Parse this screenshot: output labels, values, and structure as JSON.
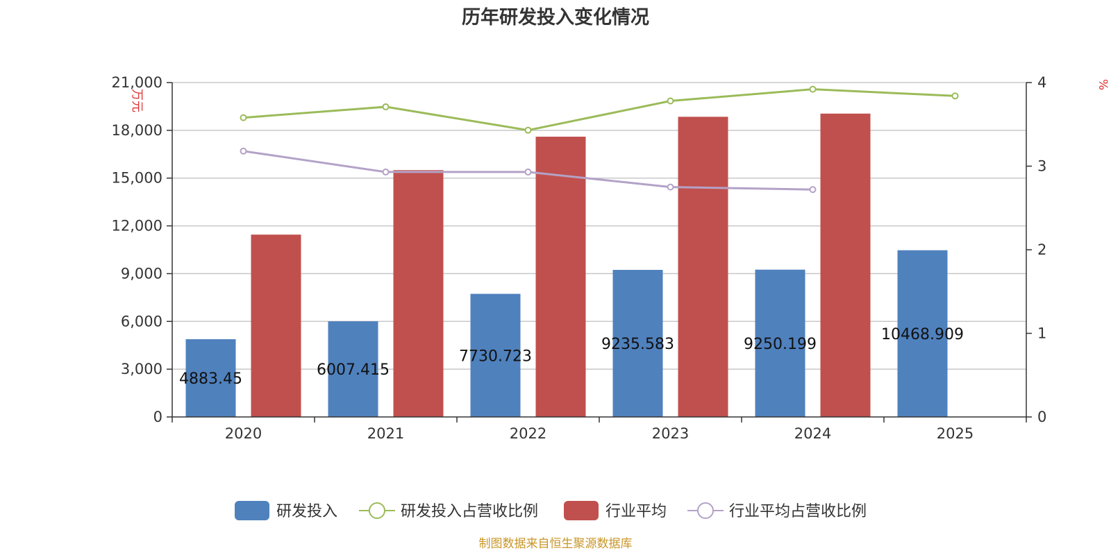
{
  "colors": {
    "rd_bar": "#4f81bd",
    "industry_bar": "#c0504d",
    "rd_ratio_line": "#9bbb59",
    "industry_ratio_line": "#b3a2c7",
    "grid": "#c8c8c8",
    "axis": "#333333",
    "title": "#333333",
    "unit_label": "#e03030",
    "source_text": "#c89628"
  },
  "source": "制图数据来自恒生聚源数据库",
  "chart_data": {
    "type": "bar",
    "title": "历年研发投入变化情况",
    "categories": [
      "2020",
      "2021",
      "2022",
      "2023",
      "2024",
      "2025"
    ],
    "y_left": {
      "label": "万元",
      "lim": [
        0,
        21000
      ],
      "ticks": [
        0,
        3000,
        6000,
        9000,
        12000,
        15000,
        18000,
        21000
      ],
      "tick_labels": [
        "0",
        "3,000",
        "6,000",
        "9,000",
        "12,000",
        "15,000",
        "18,000",
        "21,000"
      ]
    },
    "y_right": {
      "label": "%",
      "lim": [
        0,
        4
      ],
      "ticks": [
        0,
        1,
        2,
        3,
        4
      ],
      "tick_labels": [
        "0",
        "1",
        "2",
        "3",
        "4"
      ]
    },
    "grid": true,
    "legend_position": "bottom",
    "series": [
      {
        "name": "研发投入",
        "kind": "bar",
        "axis": "left",
        "color": "#4f81bd",
        "values": [
          4883.45,
          6007.415,
          7730.723,
          9235.583,
          9250.199,
          10468.909
        ],
        "labels": [
          "4883.45",
          "6007.415",
          "7730.723",
          "9235.583",
          "9250.199",
          "10468.909"
        ]
      },
      {
        "name": "研发投入占营收比例",
        "kind": "line",
        "axis": "right",
        "color": "#9bbb59",
        "values": [
          3.58,
          3.71,
          3.43,
          3.78,
          3.92,
          3.84
        ]
      },
      {
        "name": "行业平均",
        "kind": "bar",
        "axis": "left",
        "color": "#c0504d",
        "values": [
          11450,
          15500,
          17600,
          18850,
          19050,
          null
        ]
      },
      {
        "name": "行业平均占营收比例",
        "kind": "line",
        "axis": "right",
        "color": "#b3a2c7",
        "values": [
          3.18,
          2.93,
          2.93,
          2.75,
          2.72,
          null
        ]
      }
    ]
  }
}
